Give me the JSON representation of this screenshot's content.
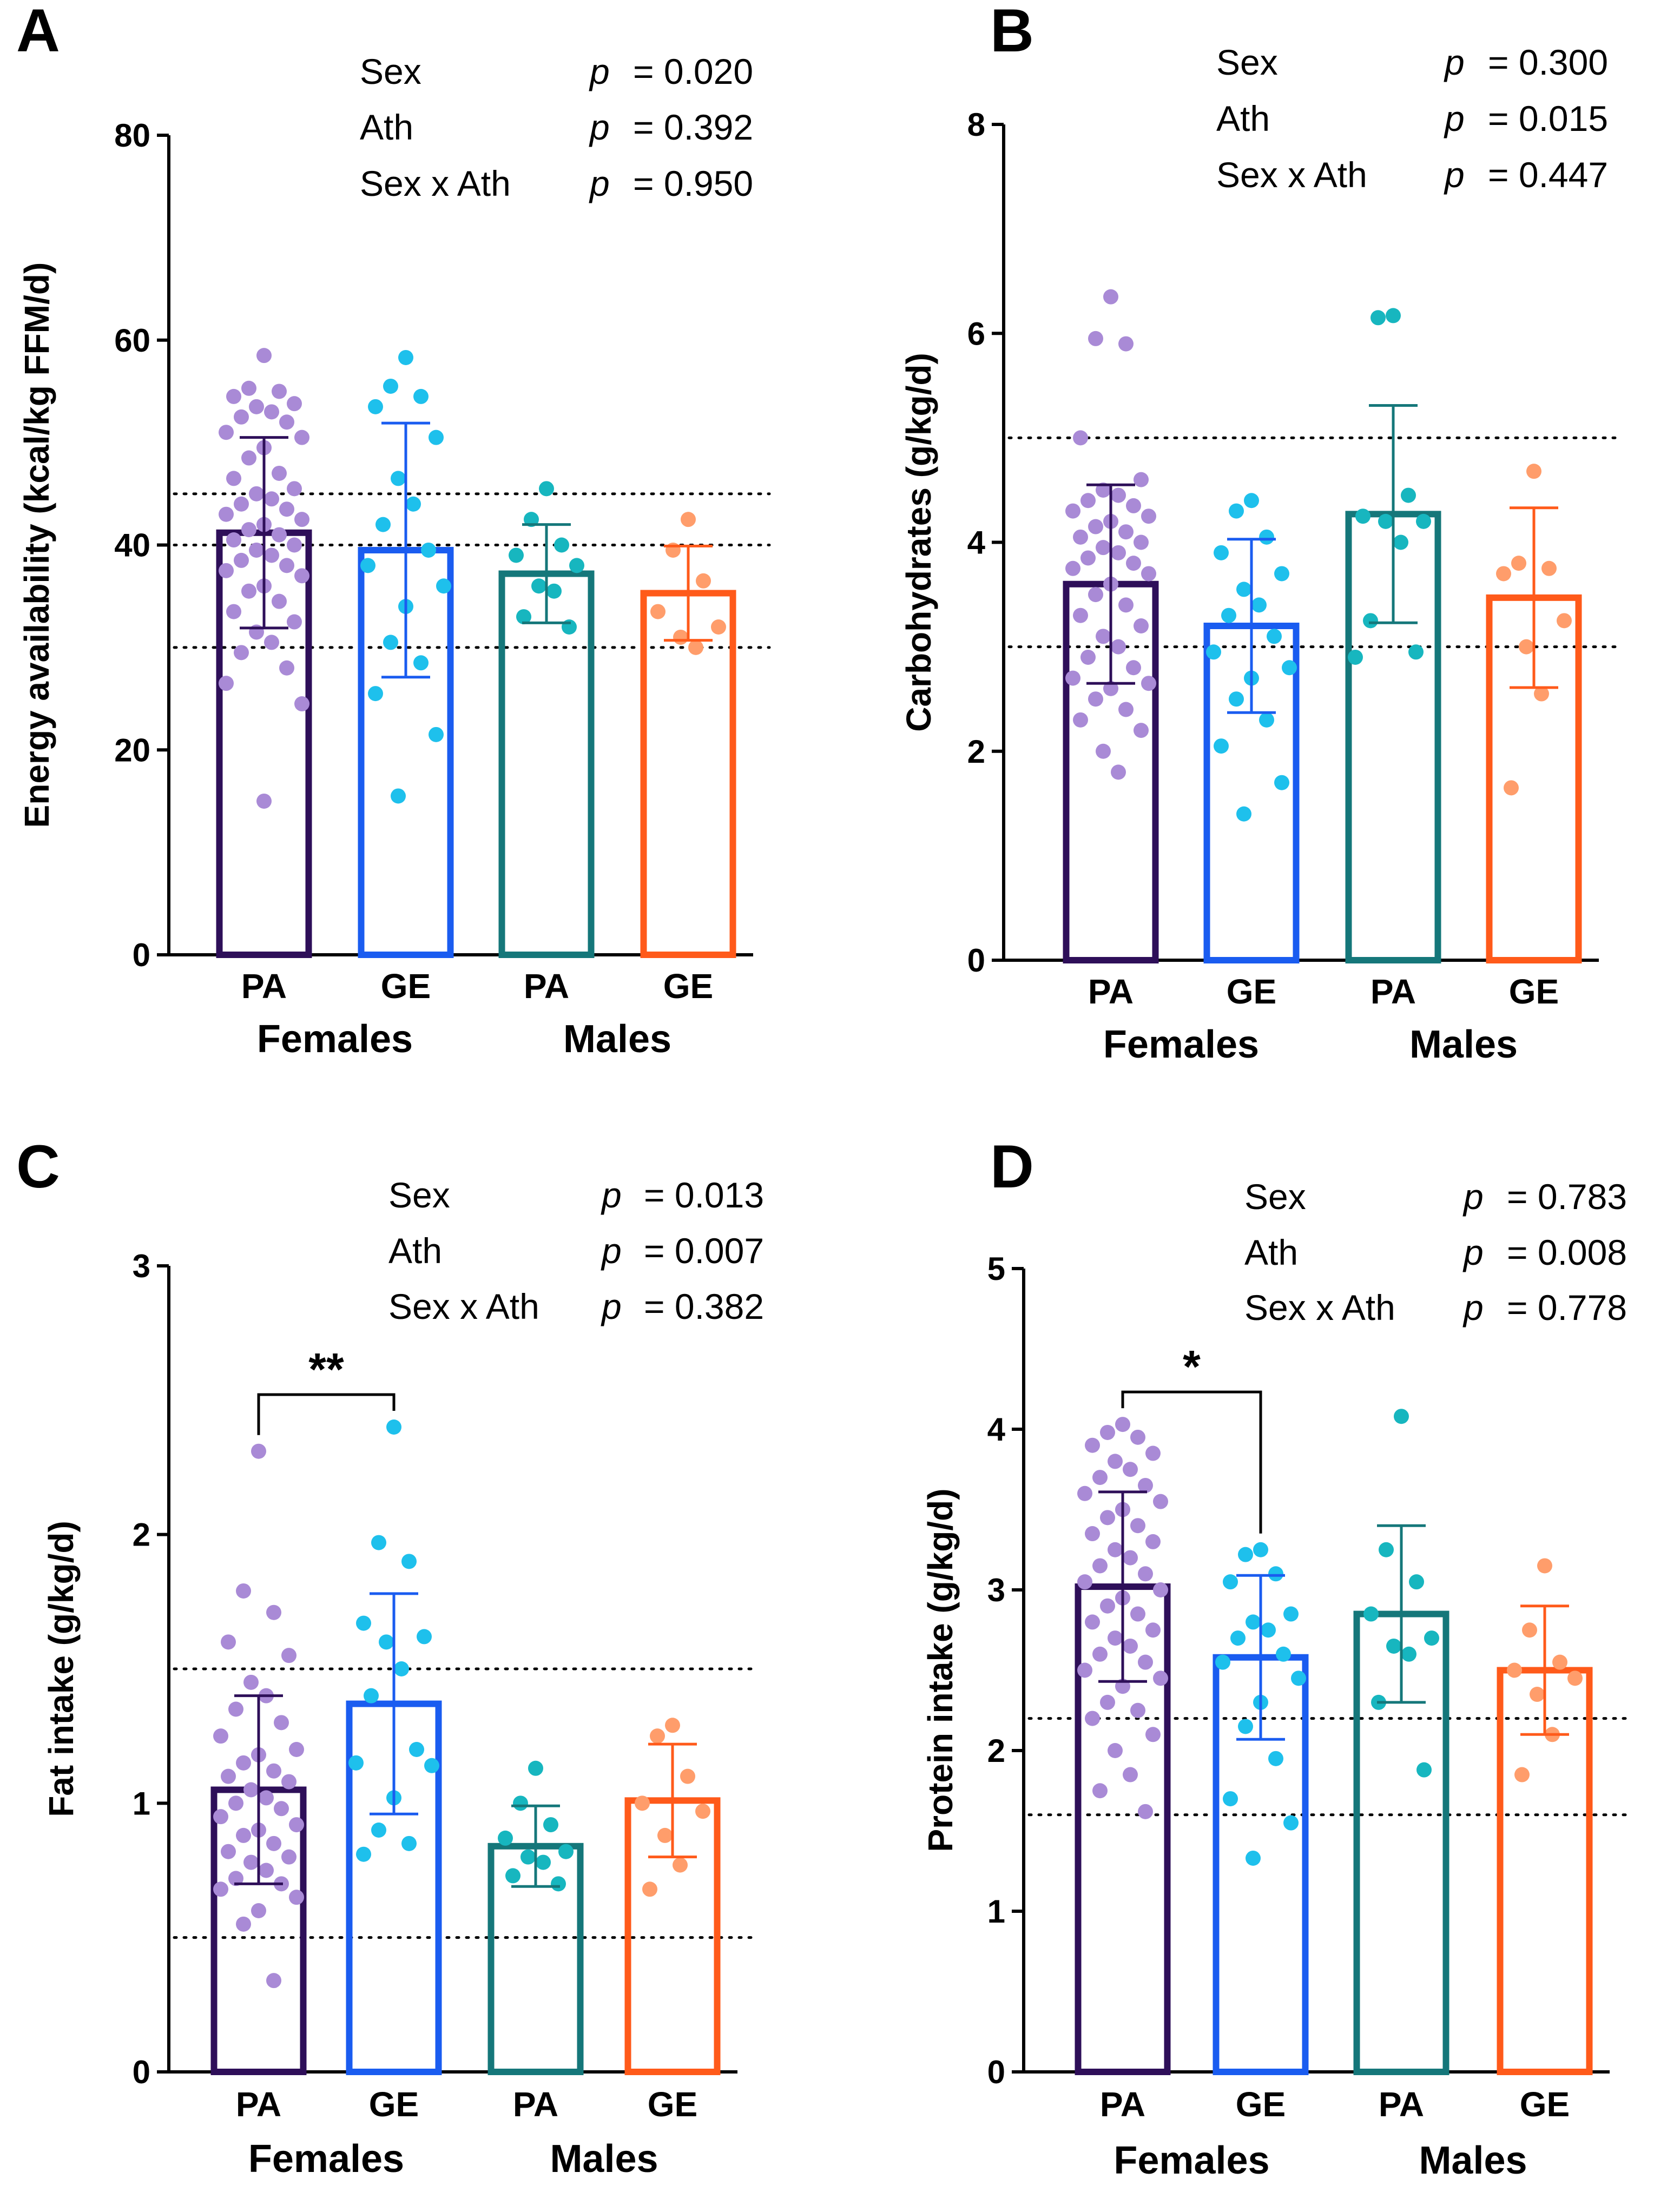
{
  "groups": [
    "Females",
    "Males"
  ],
  "categories": [
    "PA",
    "GE",
    "PA",
    "GE"
  ],
  "colors": {
    "bars": [
      "#2e0f59",
      "#1a5cf0",
      "#15777a",
      "#ff5a1a"
    ],
    "dots": [
      "#a98ad6",
      "#1ec0ec",
      "#17b6bf",
      "#ff9d6b"
    ],
    "reference_line": "#000000"
  },
  "stat_labels": {
    "sex": "Sex",
    "ath": "Ath",
    "interaction": "Sex x Ath",
    "p_symbol": "p"
  },
  "chart_data": [
    {
      "panel": "A",
      "type": "bar",
      "ylabel": "Energy availability (kcal/kg FFM/d)",
      "ylim": [
        0,
        80
      ],
      "yticks": [
        0,
        20,
        40,
        60,
        80
      ],
      "means": [
        41.2,
        39.5,
        37.2,
        35.3
      ],
      "sd": [
        9.3,
        12.4,
        4.8,
        4.6
      ],
      "reference_lines": [
        30,
        40,
        45
      ],
      "stats": {
        "sex": "= 0.020",
        "ath": "= 0.392",
        "interaction": "= 0.950"
      },
      "significance": null,
      "points": [
        [
          58.5,
          55.3,
          55.0,
          54.5,
          53.8,
          53.5,
          53.0,
          52.5,
          52.0,
          51.0,
          50.5,
          49.5,
          48.5,
          47.0,
          46.5,
          45.5,
          45.0,
          44.5,
          44.0,
          43.5,
          43.0,
          42.5,
          42.0,
          41.5,
          41.0,
          40.5,
          40.0,
          39.5,
          39.0,
          38.5,
          38.0,
          37.5,
          37.0,
          36.0,
          35.5,
          34.5,
          33.5,
          32.5,
          31.5,
          30.5,
          29.5,
          28.0,
          26.5,
          24.5,
          15.0
        ],
        [
          58.3,
          55.5,
          54.5,
          53.5,
          50.5,
          46.5,
          44.0,
          42.0,
          39.5,
          38.0,
          36.0,
          34.0,
          30.5,
          28.5,
          25.5,
          21.5,
          15.5
        ],
        [
          45.5,
          42.5,
          40.0,
          39.0,
          38.0,
          36.0,
          35.5,
          33.0,
          32.0
        ],
        [
          42.5,
          39.5,
          36.5,
          33.5,
          32.0,
          31.0,
          30.0
        ]
      ]
    },
    {
      "panel": "B",
      "type": "bar",
      "ylabel": "Carbohydrates (g/kg/d)",
      "ylim": [
        0,
        8
      ],
      "yticks": [
        0,
        2,
        4,
        6,
        8
      ],
      "means": [
        3.6,
        3.2,
        4.27,
        3.47
      ],
      "sd": [
        0.95,
        0.83,
        1.04,
        0.86
      ],
      "reference_lines": [
        3,
        5
      ],
      "stats": {
        "sex": "= 0.300",
        "ath": "= 0.015",
        "interaction": "= 0.447"
      },
      "significance": null,
      "points": [
        [
          6.35,
          5.95,
          5.9,
          5.0,
          4.6,
          4.5,
          4.45,
          4.4,
          4.35,
          4.3,
          4.25,
          4.2,
          4.15,
          4.1,
          4.05,
          4.0,
          3.95,
          3.9,
          3.85,
          3.8,
          3.75,
          3.7,
          3.6,
          3.5,
          3.4,
          3.3,
          3.2,
          3.1,
          3.0,
          2.9,
          2.8,
          2.7,
          2.65,
          2.6,
          2.5,
          2.4,
          2.3,
          2.2,
          2.0,
          1.8
        ],
        [
          4.4,
          4.3,
          4.05,
          3.9,
          3.7,
          3.55,
          3.4,
          3.3,
          3.1,
          2.95,
          2.8,
          2.7,
          2.5,
          2.3,
          2.05,
          1.7,
          1.4
        ],
        [
          6.17,
          6.15,
          4.45,
          4.25,
          4.2,
          4.2,
          4.0,
          3.25,
          2.95,
          2.9
        ],
        [
          4.68,
          3.8,
          3.75,
          3.7,
          3.25,
          3.0,
          2.55,
          1.65
        ]
      ]
    },
    {
      "panel": "C",
      "type": "bar",
      "ylabel": "Fat intake (g/kg/d)",
      "ylim": [
        0,
        3
      ],
      "yticks": [
        0,
        1,
        2,
        3
      ],
      "means": [
        1.05,
        1.37,
        0.84,
        1.01
      ],
      "sd": [
        0.35,
        0.41,
        0.15,
        0.21
      ],
      "reference_lines": [
        0.5,
        1.5
      ],
      "stats": {
        "sex": "= 0.013",
        "ath": "= 0.007",
        "interaction": "= 0.382"
      },
      "significance": {
        "from": 0,
        "to": 1,
        "label": "**"
      },
      "points": [
        [
          2.31,
          1.79,
          1.71,
          1.6,
          1.55,
          1.45,
          1.4,
          1.35,
          1.3,
          1.25,
          1.2,
          1.18,
          1.15,
          1.12,
          1.1,
          1.08,
          1.05,
          1.02,
          1.0,
          0.98,
          0.95,
          0.92,
          0.9,
          0.88,
          0.85,
          0.82,
          0.8,
          0.78,
          0.75,
          0.72,
          0.7,
          0.68,
          0.65,
          0.6,
          0.55,
          0.34
        ],
        [
          2.4,
          1.97,
          1.9,
          1.67,
          1.62,
          1.6,
          1.5,
          1.4,
          1.2,
          1.15,
          1.14,
          1.02,
          0.9,
          0.85,
          0.81
        ],
        [
          1.13,
          1.0,
          0.92,
          0.87,
          0.82,
          0.8,
          0.78,
          0.73,
          0.7
        ],
        [
          1.29,
          1.25,
          1.1,
          1.0,
          0.97,
          0.88,
          0.77,
          0.68
        ]
      ]
    },
    {
      "panel": "D",
      "type": "bar",
      "ylabel": "Protein intake (g/kg/d)",
      "ylim": [
        0,
        5
      ],
      "yticks": [
        0,
        1,
        2,
        3,
        4,
        5
      ],
      "means": [
        3.02,
        2.58,
        2.85,
        2.5
      ],
      "sd": [
        0.59,
        0.51,
        0.55,
        0.4
      ],
      "reference_lines": [
        1.6,
        2.2
      ],
      "stats": {
        "sex": "= 0.783",
        "ath": "= 0.008",
        "interaction": "= 0.778"
      },
      "significance": {
        "from": 0,
        "to": 1,
        "label": "*"
      },
      "points": [
        [
          4.03,
          3.98,
          3.95,
          3.9,
          3.85,
          3.8,
          3.75,
          3.7,
          3.65,
          3.6,
          3.55,
          3.5,
          3.45,
          3.4,
          3.35,
          3.3,
          3.25,
          3.2,
          3.15,
          3.1,
          3.05,
          3.0,
          2.95,
          2.9,
          2.85,
          2.8,
          2.75,
          2.7,
          2.65,
          2.6,
          2.55,
          2.5,
          2.45,
          2.4,
          2.3,
          2.25,
          2.2,
          2.1,
          2.0,
          1.85,
          1.75,
          1.62
        ],
        [
          3.25,
          3.22,
          3.1,
          3.05,
          2.85,
          2.8,
          2.75,
          2.7,
          2.6,
          2.55,
          2.45,
          2.3,
          2.15,
          1.95,
          1.7,
          1.55,
          1.33
        ],
        [
          4.08,
          3.25,
          3.05,
          2.85,
          2.7,
          2.65,
          2.6,
          2.3,
          1.88
        ],
        [
          3.15,
          2.75,
          2.55,
          2.5,
          2.45,
          2.35,
          2.1,
          1.85
        ]
      ]
    }
  ]
}
